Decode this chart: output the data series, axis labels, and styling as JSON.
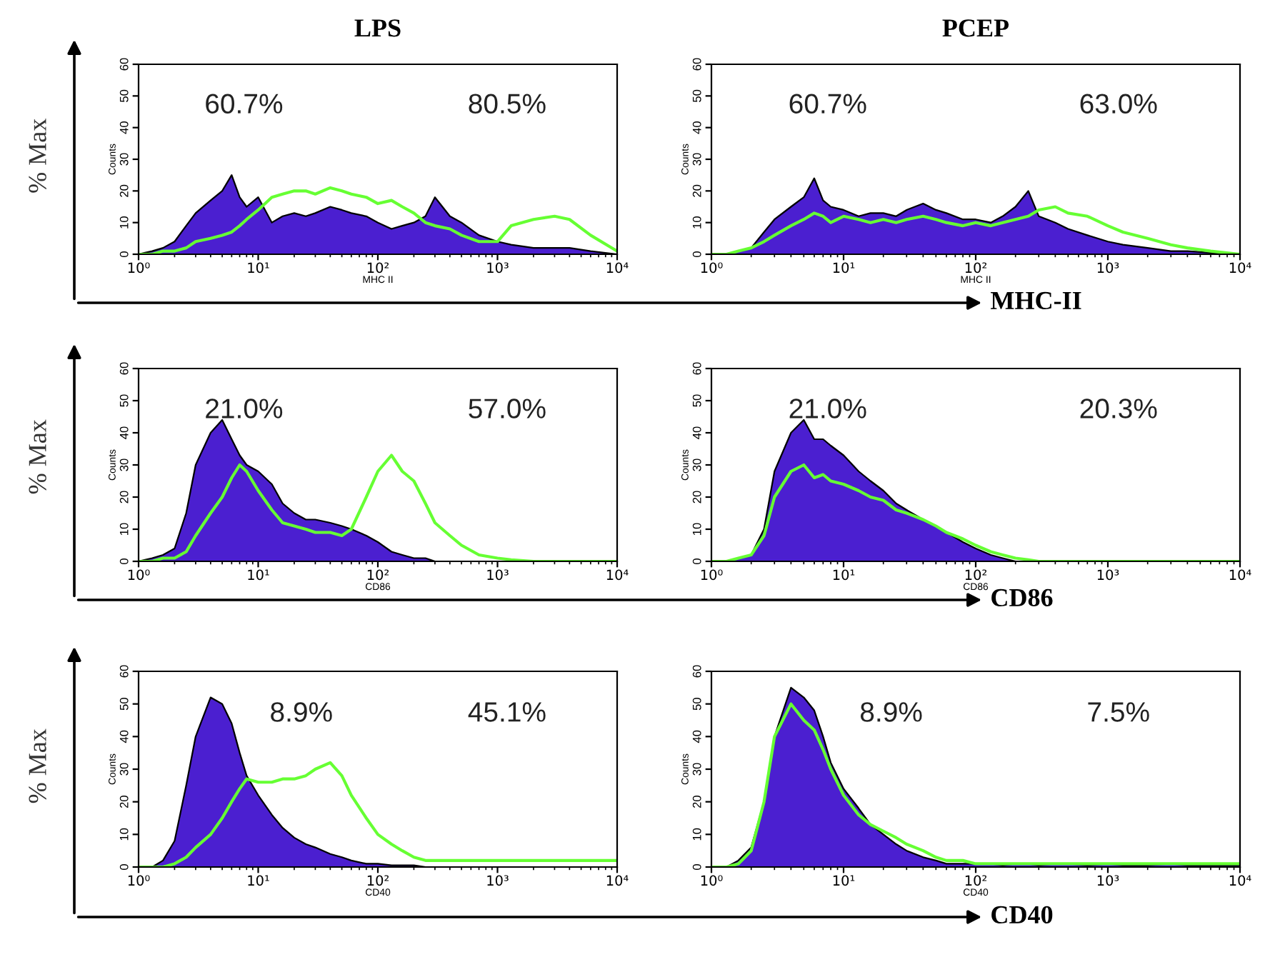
{
  "chart_data": [
    {
      "type": "other",
      "ylabel": "% Max",
      "xlabel": "MHC-II"
    },
    {
      "type": "area",
      "title": "LPS",
      "xlabel": "MHC II",
      "ylabel": "Counts",
      "log": "x",
      "xlim": [
        1,
        10000
      ],
      "ylim": [
        0,
        60
      ],
      "xticks": [
        {
          "value": 1,
          "label": "10⁰"
        },
        {
          "value": 10,
          "label": "10¹"
        },
        {
          "value": 100,
          "label": "10²"
        },
        {
          "value": 1000,
          "label": "10³"
        },
        {
          "value": 10000,
          "label": "10⁴"
        }
      ],
      "yticks": [
        0,
        10,
        20,
        30,
        40,
        50,
        60
      ],
      "x": [
        1,
        1.3,
        1.6,
        2,
        2.5,
        3,
        4,
        5,
        6,
        7,
        8,
        10,
        13,
        16,
        20,
        25,
        30,
        40,
        50,
        60,
        80,
        100,
        130,
        160,
        200,
        250,
        300,
        400,
        500,
        700,
        1000,
        1300,
        2000,
        3000,
        4000,
        6000,
        10000
      ],
      "series": [
        {
          "color": "#4b1fd0",
          "values": [
            0,
            1,
            2,
            4,
            9,
            13,
            17,
            20,
            25,
            18,
            15,
            18,
            10,
            12,
            13,
            12,
            13,
            15,
            14,
            13,
            12,
            10,
            8,
            9,
            10,
            12,
            18,
            12,
            10,
            6,
            4,
            3,
            2,
            2,
            2,
            1,
            0
          ]
        },
        {
          "type": "line",
          "color": "#66ff33",
          "values": [
            0,
            0,
            1,
            1,
            2,
            4,
            5,
            6,
            7,
            9,
            11,
            14,
            18,
            19,
            20,
            20,
            19,
            21,
            20,
            19,
            18,
            16,
            17,
            15,
            13,
            10,
            9,
            8,
            6,
            4,
            4,
            9,
            11,
            12,
            11,
            6,
            1
          ]
        }
      ],
      "annotations": [
        "60.7%",
        "80.5%"
      ]
    },
    {
      "type": "area",
      "title": "PCEP",
      "xlabel": "MHC II",
      "ylabel": "Counts",
      "log": "x",
      "xlim": [
        1,
        10000
      ],
      "ylim": [
        0,
        60
      ],
      "xticks": [
        {
          "value": 1,
          "label": "10⁰"
        },
        {
          "value": 10,
          "label": "10¹"
        },
        {
          "value": 100,
          "label": "10²"
        },
        {
          "value": 1000,
          "label": "10³"
        },
        {
          "value": 10000,
          "label": "10⁴"
        }
      ],
      "yticks": [
        0,
        10,
        20,
        30,
        40,
        50,
        60
      ],
      "x": [
        1,
        1.3,
        1.6,
        2,
        2.5,
        3,
        4,
        5,
        6,
        7,
        8,
        10,
        13,
        16,
        20,
        25,
        30,
        40,
        50,
        60,
        80,
        100,
        130,
        160,
        200,
        250,
        300,
        400,
        500,
        700,
        1000,
        1300,
        2000,
        3000,
        4000,
        6000,
        10000
      ],
      "series": [
        {
          "color": "#4b1fd0",
          "values": [
            0,
            0,
            1,
            2,
            7,
            11,
            15,
            18,
            24,
            17,
            15,
            14,
            12,
            13,
            13,
            12,
            14,
            16,
            14,
            13,
            11,
            11,
            10,
            12,
            15,
            20,
            12,
            10,
            8,
            6,
            4,
            3,
            2,
            1,
            1,
            0.5,
            0
          ]
        },
        {
          "type": "line",
          "color": "#66ff33",
          "values": [
            0,
            0,
            1,
            2,
            4,
            6,
            9,
            11,
            13,
            12,
            10,
            12,
            11,
            10,
            11,
            10,
            11,
            12,
            11,
            10,
            9,
            10,
            9,
            10,
            11,
            12,
            14,
            15,
            13,
            12,
            9,
            7,
            5,
            3,
            2,
            1,
            0
          ]
        }
      ],
      "annotations": [
        "60.7%",
        "63.0%"
      ]
    },
    {
      "type": "other",
      "ylabel": "% Max",
      "xlabel": "CD86"
    },
    {
      "type": "area",
      "xlabel": "CD86",
      "ylabel": "Counts",
      "log": "x",
      "xlim": [
        1,
        10000
      ],
      "ylim": [
        0,
        60
      ],
      "xticks": [
        {
          "value": 1,
          "label": "10⁰"
        },
        {
          "value": 10,
          "label": "10¹"
        },
        {
          "value": 100,
          "label": "10²"
        },
        {
          "value": 1000,
          "label": "10³"
        },
        {
          "value": 10000,
          "label": "10⁴"
        }
      ],
      "yticks": [
        0,
        10,
        20,
        30,
        40,
        50,
        60
      ],
      "x": [
        1,
        1.3,
        1.6,
        2,
        2.5,
        3,
        4,
        5,
        6,
        7,
        8,
        10,
        13,
        16,
        20,
        25,
        30,
        40,
        50,
        60,
        80,
        100,
        130,
        160,
        200,
        250,
        300,
        400,
        500,
        700,
        1000,
        1300,
        2000,
        3000,
        4000,
        6000,
        10000
      ],
      "series": [
        {
          "color": "#4b1fd0",
          "values": [
            0,
            1,
            2,
            4,
            15,
            30,
            40,
            44,
            38,
            33,
            30,
            28,
            24,
            18,
            15,
            13,
            13,
            12,
            11,
            10,
            8,
            6,
            3,
            2,
            1,
            1,
            0,
            0,
            0,
            0,
            0,
            0,
            0,
            0,
            0,
            0,
            0
          ]
        },
        {
          "type": "line",
          "color": "#66ff33",
          "values": [
            0,
            0,
            1,
            1,
            3,
            8,
            15,
            20,
            26,
            30,
            28,
            22,
            16,
            12,
            11,
            10,
            9,
            9,
            8,
            10,
            20,
            28,
            33,
            28,
            25,
            18,
            12,
            8,
            5,
            2,
            1,
            0.5,
            0,
            0,
            0,
            0,
            0
          ]
        }
      ],
      "annotations": [
        "21.0%",
        "57.0%"
      ]
    },
    {
      "type": "area",
      "xlabel": "CD86",
      "ylabel": "Counts",
      "log": "x",
      "xlim": [
        1,
        10000
      ],
      "ylim": [
        0,
        60
      ],
      "xticks": [
        {
          "value": 1,
          "label": "10⁰"
        },
        {
          "value": 10,
          "label": "10¹"
        },
        {
          "value": 100,
          "label": "10²"
        },
        {
          "value": 1000,
          "label": "10³"
        },
        {
          "value": 10000,
          "label": "10⁴"
        }
      ],
      "yticks": [
        0,
        10,
        20,
        30,
        40,
        50,
        60
      ],
      "x": [
        1,
        1.3,
        1.6,
        2,
        2.5,
        3,
        4,
        5,
        6,
        7,
        8,
        10,
        13,
        16,
        20,
        25,
        30,
        40,
        50,
        60,
        80,
        100,
        130,
        160,
        200,
        250,
        300,
        400,
        500,
        700,
        1000,
        1300,
        2000,
        3000,
        4000,
        6000,
        10000
      ],
      "series": [
        {
          "color": "#4b1fd0",
          "values": [
            0,
            0,
            1,
            2,
            10,
            28,
            40,
            44,
            38,
            38,
            36,
            33,
            28,
            25,
            22,
            18,
            16,
            13,
            11,
            9,
            6,
            4,
            2,
            1,
            0,
            0,
            0,
            0,
            0,
            0,
            0,
            0,
            0,
            0,
            0,
            0,
            0
          ]
        },
        {
          "type": "line",
          "color": "#66ff33",
          "values": [
            0,
            0,
            1,
            2,
            8,
            20,
            28,
            30,
            26,
            27,
            25,
            24,
            22,
            20,
            19,
            16,
            15,
            13,
            11,
            9,
            7,
            5,
            3,
            2,
            1,
            0.5,
            0,
            0,
            0,
            0,
            0,
            0,
            0,
            0,
            0,
            0,
            0
          ]
        }
      ],
      "annotations": [
        "21.0%",
        "20.3%"
      ]
    },
    {
      "type": "other",
      "ylabel": "% Max",
      "xlabel": "CD40"
    },
    {
      "type": "area",
      "xlabel": "CD40",
      "ylabel": "Counts",
      "log": "x",
      "xlim": [
        1,
        10000
      ],
      "ylim": [
        0,
        60
      ],
      "xticks": [
        {
          "value": 1,
          "label": "10⁰"
        },
        {
          "value": 10,
          "label": "10¹"
        },
        {
          "value": 100,
          "label": "10²"
        },
        {
          "value": 1000,
          "label": "10³"
        },
        {
          "value": 10000,
          "label": "10⁴"
        }
      ],
      "yticks": [
        0,
        10,
        20,
        30,
        40,
        50,
        60
      ],
      "x": [
        1,
        1.3,
        1.6,
        2,
        2.5,
        3,
        4,
        5,
        6,
        7,
        8,
        10,
        13,
        16,
        20,
        25,
        30,
        40,
        50,
        60,
        80,
        100,
        130,
        160,
        200,
        250,
        300,
        400,
        500,
        700,
        1000,
        1300,
        2000,
        3000,
        4000,
        6000,
        10000
      ],
      "series": [
        {
          "color": "#4b1fd0",
          "values": [
            0,
            0,
            2,
            8,
            25,
            40,
            52,
            50,
            44,
            35,
            28,
            22,
            16,
            12,
            9,
            7,
            6,
            4,
            3,
            2,
            1,
            1,
            0.5,
            0.5,
            0.5,
            0,
            0,
            0,
            0,
            0,
            0,
            0,
            0,
            0,
            0,
            0,
            0
          ]
        },
        {
          "type": "line",
          "color": "#66ff33",
          "values": [
            0,
            0,
            0,
            1,
            3,
            6,
            10,
            15,
            20,
            24,
            27,
            26,
            26,
            27,
            27,
            28,
            30,
            32,
            28,
            22,
            15,
            10,
            7,
            5,
            3,
            2,
            2,
            2,
            2,
            2,
            2,
            2,
            2,
            2,
            2,
            2,
            2
          ]
        }
      ],
      "annotations": [
        "8.9%",
        "45.1%"
      ]
    },
    {
      "type": "area",
      "xlabel": "CD40",
      "ylabel": "Counts",
      "log": "x",
      "xlim": [
        1,
        10000
      ],
      "ylim": [
        0,
        60
      ],
      "xticks": [
        {
          "value": 1,
          "label": "10⁰"
        },
        {
          "value": 10,
          "label": "10¹"
        },
        {
          "value": 100,
          "label": "10²"
        },
        {
          "value": 1000,
          "label": "10³"
        },
        {
          "value": 10000,
          "label": "10⁴"
        }
      ],
      "yticks": [
        0,
        10,
        20,
        30,
        40,
        50,
        60
      ],
      "x": [
        1,
        1.3,
        1.6,
        2,
        2.5,
        3,
        4,
        5,
        6,
        7,
        8,
        10,
        13,
        16,
        20,
        25,
        30,
        40,
        50,
        60,
        80,
        100,
        130,
        160,
        200,
        250,
        300,
        400,
        500,
        700,
        1000,
        1300,
        2000,
        3000,
        4000,
        6000,
        10000
      ],
      "series": [
        {
          "color": "#4b1fd0",
          "values": [
            0,
            0,
            2,
            6,
            20,
            40,
            55,
            52,
            48,
            40,
            32,
            24,
            18,
            13,
            10,
            7,
            5,
            3,
            2,
            1,
            1,
            1,
            1,
            0.5,
            1,
            1,
            0.5,
            1,
            1,
            0.5,
            1,
            0.5,
            0.5,
            1,
            0.5,
            0.5,
            0.5
          ]
        },
        {
          "type": "line",
          "color": "#66ff33",
          "values": [
            0,
            0,
            1,
            5,
            20,
            40,
            50,
            45,
            42,
            36,
            30,
            22,
            16,
            13,
            11,
            9,
            7,
            5,
            3,
            2,
            2,
            1,
            1,
            1,
            1,
            1,
            1,
            1,
            1,
            1,
            1,
            1,
            1,
            1,
            1,
            1,
            1
          ]
        }
      ],
      "annotations": [
        "8.9%",
        "7.5%"
      ]
    }
  ]
}
